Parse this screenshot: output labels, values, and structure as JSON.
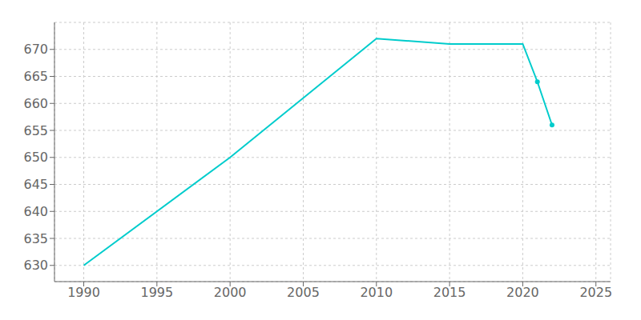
{
  "chart_data": {
    "type": "line",
    "x": [
      1990,
      2000,
      2010,
      2015,
      2020,
      2021,
      2022
    ],
    "series": [
      {
        "type": "line",
        "color": "#00CCCC",
        "values": [
          630,
          650,
          672,
          671,
          671,
          664,
          656
        ]
      },
      {
        "type": "scatter",
        "color": "#00CCCC",
        "marker": "circle",
        "values": [
          null,
          null,
          null,
          null,
          null,
          664,
          656
        ]
      }
    ],
    "xlim": [
      1988,
      2026
    ],
    "xticks": [
      1990,
      1995,
      2000,
      2005,
      2010,
      2015,
      2020,
      2025
    ],
    "ylim": [
      627,
      675
    ],
    "yticks": [
      630,
      635,
      640,
      645,
      650,
      655,
      660,
      665,
      670
    ],
    "grid": true
  }
}
